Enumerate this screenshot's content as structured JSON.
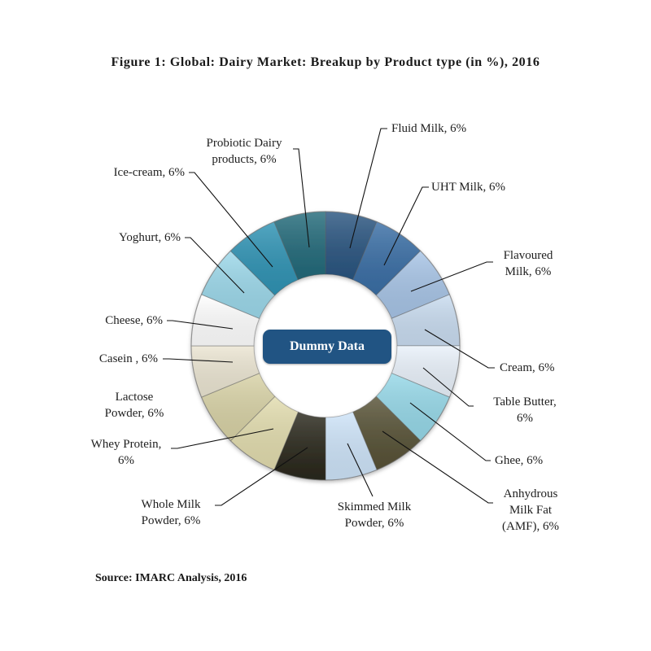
{
  "figure": {
    "title": "Figure 1: Global: Dairy Market: Breakup by Product type (in %), 2016",
    "source": "Source: IMARC Analysis, 2016",
    "center_label": "Dummy Data"
  },
  "chart_data": {
    "type": "pie",
    "variant": "donut",
    "title": "Figure 1: Global: Dairy Market: Breakup by Product type (in %), 2016",
    "center_label": "Dummy Data",
    "source": "Source: IMARC Analysis, 2016",
    "unit": "%",
    "start_angle_deg": 0,
    "direction": "clockwise",
    "categories": [
      "Fluid Milk",
      "UHT Milk",
      "Flavoured Milk",
      "Cream",
      "Table Butter",
      "Ghee",
      "Anhydrous Milk Fat (AMF)",
      "Skimmed Milk Powder",
      "Whole Milk Powder",
      "Whey Protein",
      "Lactose Powder",
      "Casein",
      "Cheese",
      "Yoghurt",
      "Ice-cream",
      "Probiotic Dairy products"
    ],
    "values": [
      6,
      6,
      6,
      6,
      6,
      6,
      6,
      6,
      6,
      6,
      6,
      6,
      6,
      6,
      6,
      6
    ],
    "colors": [
      "#2a5580",
      "#3a6ea5",
      "#a7c4e6",
      "#c9dcf0",
      "#e9f1fa",
      "#96d8e8",
      "#575236",
      "#cde3f8",
      "#2a281c",
      "#e2dcae",
      "#d8d2a6",
      "#ebe5d2",
      "#ffffff",
      "#9cd8ea",
      "#2f93b4",
      "#236a7a"
    ],
    "data_labels": [
      "Fluid Milk, 6%",
      "UHT Milk, 6%",
      "Flavoured Milk, 6%",
      "Cream, 6%",
      "Table Butter, 6%",
      "Ghee, 6%",
      "Anhydrous Milk Fat (AMF), 6%",
      "Skimmed Milk Powder, 6%",
      "Whole Milk Powder, 6%",
      "Whey Protein, 6%",
      "Lactose Powder, 6%",
      "Casein , 6%",
      "Cheese, 6%",
      "Yoghurt, 6%",
      "Ice-cream, 6%",
      "Probiotic Dairy products, 6%"
    ]
  },
  "labels": {
    "fluid_milk": "Fluid Milk, 6%",
    "uht_milk": "UHT Milk, 6%",
    "flavoured_milk_1": "Flavoured",
    "flavoured_milk_2": "Milk, 6%",
    "cream": "Cream, 6%",
    "table_butter_1": "Table Butter,",
    "table_butter_2": "6%",
    "ghee": "Ghee, 6%",
    "amf_1": "Anhydrous",
    "amf_2": "Milk Fat",
    "amf_3": "(AMF), 6%",
    "skimmed_1": "Skimmed Milk",
    "skimmed_2": "Powder, 6%",
    "whole_1": "Whole Milk",
    "whole_2": "Powder, 6%",
    "whey_1": "Whey Protein,",
    "whey_2": "6%",
    "lactose_1": "Lactose",
    "lactose_2": "Powder, 6%",
    "casein": "Casein , 6%",
    "cheese": "Cheese, 6%",
    "yoghurt": "Yoghurt, 6%",
    "icecream": "Ice-cream, 6%",
    "probiotic_1": "Probiotic Dairy",
    "probiotic_2": "products, 6%"
  }
}
